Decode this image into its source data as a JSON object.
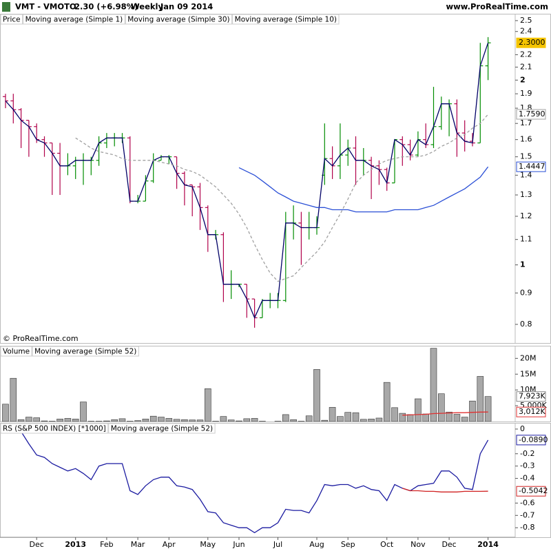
{
  "header": {
    "symbol": "VMT - VMOTO",
    "change": "2.30 (+6.98%)",
    "period": "Weekly",
    "date": "Jan 09 2014",
    "site": "www.ProRealTime.com"
  },
  "chart_data": [
    {
      "type": "ohlc",
      "log_scale": true,
      "ylim": [
        0.746,
        2.565
      ],
      "yticks": [
        0.8,
        0.9,
        1,
        1.1,
        1.2,
        1.3,
        1.4,
        1.5,
        1.6,
        1.7,
        1.8,
        1.9,
        2,
        2.1,
        2.2,
        2.4,
        2.5
      ],
      "copyright": "© ProRealTime.com",
      "up_color": "#008c00",
      "down_color": "#b0004a",
      "categories": [
        null,
        null,
        null,
        null,
        "Dec",
        null,
        null,
        null,
        null,
        "2013",
        null,
        null,
        null,
        "Feb",
        null,
        null,
        null,
        "Mar",
        null,
        null,
        null,
        "Apr",
        null,
        null,
        null,
        null,
        "May",
        null,
        null,
        null,
        "Jun",
        null,
        null,
        null,
        null,
        "Jul",
        null,
        null,
        null,
        null,
        "Aug",
        null,
        null,
        null,
        "Sep",
        null,
        null,
        null,
        null,
        "Oct",
        null,
        null,
        null,
        "Nov",
        null,
        null,
        null,
        "Dec",
        null,
        null,
        null,
        null,
        "2014"
      ],
      "series": [
        {
          "name": "Price",
          "last_label": "2.3000",
          "open": [
            1.88,
            1.85,
            1.79,
            1.72,
            1.68,
            1.6,
            1.58,
            1.52,
            1.45,
            1.45,
            1.48,
            1.48,
            1.48,
            1.58,
            1.61,
            1.61,
            1.61,
            1.27,
            1.27,
            1.37,
            1.48,
            1.5,
            1.5,
            1.41,
            1.35,
            1.34,
            1.24,
            1.12,
            1.12,
            0.93,
            0.93,
            0.93,
            0.88,
            0.82,
            0.875,
            0.875,
            0.875,
            1.17,
            1.17,
            1.15,
            1.15,
            1.4,
            1.49,
            1.45,
            1.51,
            1.55,
            1.48,
            1.48,
            1.45,
            1.43,
            1.36,
            1.6,
            1.57,
            1.51,
            1.6,
            1.57,
            1.68,
            1.83,
            1.83,
            1.64,
            1.59,
            1.58,
            2.11
          ],
          "high": [
            1.9,
            1.9,
            1.8,
            1.72,
            1.7,
            1.62,
            1.58,
            1.58,
            1.52,
            1.5,
            1.52,
            1.5,
            1.62,
            1.64,
            1.64,
            1.64,
            1.62,
            1.3,
            1.4,
            1.52,
            1.51,
            1.51,
            1.5,
            1.42,
            1.35,
            1.36,
            1.25,
            1.14,
            1.13,
            0.98,
            0.93,
            0.93,
            0.88,
            0.88,
            0.9,
            0.9,
            1.22,
            1.25,
            1.22,
            1.22,
            1.2,
            1.7,
            1.56,
            1.7,
            1.6,
            1.62,
            1.55,
            1.5,
            1.48,
            1.44,
            1.6,
            1.62,
            1.6,
            1.65,
            1.7,
            1.95,
            1.88,
            1.86,
            1.86,
            1.72,
            1.64,
            2.3,
            2.35
          ],
          "low": [
            1.8,
            1.7,
            1.55,
            1.5,
            1.58,
            1.5,
            1.3,
            1.3,
            1.4,
            1.38,
            1.35,
            1.4,
            1.45,
            1.55,
            1.56,
            1.58,
            1.26,
            1.26,
            1.27,
            1.36,
            1.48,
            1.46,
            1.33,
            1.25,
            1.2,
            1.14,
            1.05,
            1.1,
            0.87,
            0.88,
            0.92,
            0.82,
            0.79,
            0.82,
            0.85,
            0.85,
            0.87,
            1.1,
            1.0,
            1.1,
            1.12,
            1.35,
            1.38,
            1.38,
            1.45,
            1.35,
            1.4,
            1.28,
            1.35,
            1.32,
            1.36,
            1.45,
            1.48,
            1.5,
            1.55,
            1.55,
            1.66,
            1.62,
            1.5,
            1.53,
            1.56,
            1.58,
            2.0
          ],
          "close": [
            1.85,
            1.79,
            1.72,
            1.68,
            1.6,
            1.58,
            1.52,
            1.45,
            1.45,
            1.48,
            1.48,
            1.48,
            1.58,
            1.61,
            1.61,
            1.61,
            1.27,
            1.27,
            1.37,
            1.48,
            1.5,
            1.5,
            1.41,
            1.35,
            1.34,
            1.24,
            1.12,
            1.12,
            0.93,
            0.93,
            0.93,
            0.88,
            0.82,
            0.875,
            0.875,
            0.875,
            1.17,
            1.17,
            1.15,
            1.15,
            1.15,
            1.49,
            1.45,
            1.51,
            1.55,
            1.48,
            1.48,
            1.45,
            1.43,
            1.36,
            1.6,
            1.57,
            1.51,
            1.6,
            1.57,
            1.68,
            1.83,
            1.83,
            1.64,
            1.59,
            1.58,
            2.11,
            2.3
          ]
        },
        {
          "name": "Moving average (Simple 1)",
          "color": "#000066",
          "values": [
            1.85,
            1.79,
            1.72,
            1.68,
            1.6,
            1.58,
            1.52,
            1.45,
            1.45,
            1.48,
            1.48,
            1.48,
            1.58,
            1.61,
            1.61,
            1.61,
            1.27,
            1.27,
            1.37,
            1.48,
            1.5,
            1.5,
            1.41,
            1.35,
            1.34,
            1.24,
            1.12,
            1.12,
            0.93,
            0.93,
            0.93,
            0.88,
            0.82,
            0.875,
            0.875,
            0.875,
            1.17,
            1.17,
            1.15,
            1.15,
            1.15,
            1.49,
            1.45,
            1.51,
            1.55,
            1.48,
            1.48,
            1.45,
            1.43,
            1.36,
            1.6,
            1.57,
            1.51,
            1.6,
            1.57,
            1.68,
            1.83,
            1.83,
            1.64,
            1.59,
            1.58,
            2.11,
            2.3
          ]
        },
        {
          "name": "Moving average (Simple 30)",
          "color": "#2a4fd6",
          "last_label": "1.4447",
          "values": [
            null,
            null,
            null,
            null,
            null,
            null,
            null,
            null,
            null,
            null,
            null,
            null,
            null,
            null,
            null,
            null,
            null,
            null,
            null,
            null,
            null,
            null,
            null,
            null,
            null,
            null,
            null,
            null,
            null,
            null,
            1.44,
            1.42,
            1.4,
            1.37,
            1.34,
            1.31,
            1.29,
            1.27,
            1.26,
            1.25,
            1.24,
            1.24,
            1.23,
            1.23,
            1.23,
            1.22,
            1.22,
            1.22,
            1.22,
            1.22,
            1.23,
            1.23,
            1.23,
            1.23,
            1.24,
            1.25,
            1.27,
            1.29,
            1.31,
            1.33,
            1.36,
            1.39,
            1.4447
          ]
        },
        {
          "name": "Moving average (Simple 10)",
          "color": "#a0a0a0",
          "dashed": true,
          "last_label": "1.7590",
          "values": [
            null,
            null,
            null,
            null,
            null,
            null,
            null,
            null,
            null,
            1.61,
            1.58,
            1.55,
            1.53,
            1.52,
            1.51,
            1.49,
            1.48,
            1.48,
            1.48,
            1.48,
            1.47,
            1.46,
            1.45,
            1.43,
            1.42,
            1.4,
            1.37,
            1.34,
            1.3,
            1.26,
            1.21,
            1.15,
            1.08,
            1.02,
            0.97,
            0.94,
            0.95,
            0.96,
            0.99,
            1.02,
            1.05,
            1.09,
            1.15,
            1.21,
            1.28,
            1.36,
            1.4,
            1.43,
            1.46,
            1.48,
            1.49,
            1.5,
            1.5,
            1.5,
            1.51,
            1.53,
            1.56,
            1.58,
            1.61,
            1.63,
            1.67,
            1.7,
            1.759
          ]
        }
      ]
    },
    {
      "type": "bar",
      "ylim": [
        0,
        24000000
      ],
      "yticks": [
        {
          "value": 5000000,
          "label": "5,000K"
        },
        {
          "value": 10000000,
          "label": "10M"
        },
        {
          "value": 15000000,
          "label": "15M"
        },
        {
          "value": 20000000,
          "label": "20M"
        }
      ],
      "series": [
        {
          "name": "Volume",
          "color": "#a8a8a8",
          "last_label": "7,923K",
          "values": [
            5500000,
            13700000,
            600000,
            1400000,
            1200000,
            200000,
            100000,
            800000,
            1000000,
            800000,
            6200000,
            100000,
            100000,
            200000,
            600000,
            900000,
            100000,
            300000,
            800000,
            1700000,
            1400000,
            1000000,
            700000,
            600000,
            500000,
            500000,
            10400000,
            100000,
            1600000,
            500000,
            200000,
            900000,
            1000000,
            100000,
            0,
            100000,
            2200000,
            600000,
            100000,
            1800000,
            16500000,
            400000,
            4500000,
            1600000,
            2900000,
            2800000,
            700000,
            800000,
            1100000,
            12400000,
            4400000,
            2600000,
            2200000,
            7200000,
            2400000,
            23200000,
            8800000,
            3000000,
            2300000,
            1400000,
            6500000,
            14300000,
            7923000
          ]
        },
        {
          "name": "Moving average (Simple 52)",
          "color": "#e03030",
          "last_label": "3,012K",
          "values": [
            null,
            null,
            null,
            null,
            null,
            null,
            null,
            null,
            null,
            null,
            null,
            null,
            null,
            null,
            null,
            null,
            null,
            null,
            null,
            null,
            null,
            null,
            null,
            null,
            null,
            null,
            null,
            null,
            null,
            null,
            null,
            null,
            null,
            null,
            null,
            null,
            null,
            null,
            null,
            null,
            null,
            null,
            null,
            null,
            null,
            null,
            null,
            null,
            null,
            null,
            null,
            2000000,
            2100000,
            2200000,
            2300000,
            2500000,
            2600000,
            2700000,
            2800000,
            2800000,
            2900000,
            3000000,
            3012000
          ]
        }
      ]
    },
    {
      "type": "line",
      "ylim": [
        -0.877,
        0.05
      ],
      "yticks": [
        0,
        -0.2,
        -0.3,
        -0.4,
        -0.6,
        -0.7,
        -0.8
      ],
      "series": [
        {
          "name": "RS (S&P 500 INDEX) [*1000]",
          "color": "#1a1aa0",
          "last_label": "-0.0890",
          "values": [
            0.08,
            0.05,
            -0.02,
            -0.12,
            -0.21,
            -0.23,
            -0.28,
            -0.31,
            -0.34,
            -0.32,
            -0.36,
            -0.41,
            -0.3,
            -0.28,
            -0.28,
            -0.28,
            -0.5,
            -0.53,
            -0.46,
            -0.41,
            -0.39,
            -0.39,
            -0.46,
            -0.47,
            -0.49,
            -0.57,
            -0.67,
            -0.68,
            -0.76,
            -0.78,
            -0.8,
            -0.8,
            -0.84,
            -0.8,
            -0.8,
            -0.76,
            -0.65,
            -0.66,
            -0.66,
            -0.68,
            -0.58,
            -0.45,
            -0.46,
            -0.45,
            -0.45,
            -0.48,
            -0.46,
            -0.49,
            -0.5,
            -0.58,
            -0.45,
            -0.48,
            -0.5,
            -0.46,
            -0.45,
            -0.44,
            -0.34,
            -0.34,
            -0.39,
            -0.48,
            -0.49,
            -0.2,
            -0.089
          ]
        },
        {
          "name": "Moving average (Simple 52)",
          "color": "#d02020",
          "last_label": "-0.5042",
          "values": [
            null,
            null,
            null,
            null,
            null,
            null,
            null,
            null,
            null,
            null,
            null,
            null,
            null,
            null,
            null,
            null,
            null,
            null,
            null,
            null,
            null,
            null,
            null,
            null,
            null,
            null,
            null,
            null,
            null,
            null,
            null,
            null,
            null,
            null,
            null,
            null,
            null,
            null,
            null,
            null,
            null,
            null,
            null,
            null,
            null,
            null,
            null,
            null,
            null,
            null,
            null,
            -0.48,
            -0.5,
            -0.5,
            -0.505,
            -0.505,
            -0.51,
            -0.51,
            -0.51,
            -0.505,
            -0.505,
            -0.505,
            -0.5042
          ]
        }
      ]
    }
  ]
}
